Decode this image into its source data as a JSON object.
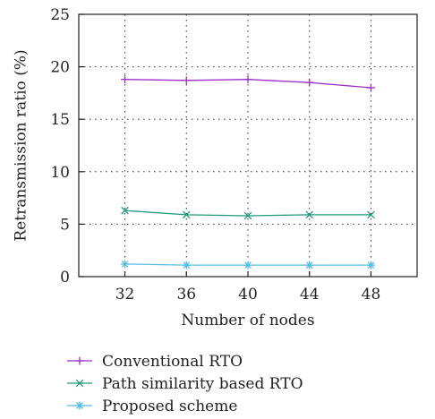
{
  "chart_data": {
    "type": "line",
    "xlabel": "Number of nodes",
    "ylabel": "Retransmission ratio (%)",
    "x": [
      32,
      36,
      40,
      44,
      48
    ],
    "xlim": [
      29,
      51
    ],
    "ylim": [
      0,
      25
    ],
    "yticks": [
      0,
      5,
      10,
      15,
      20,
      25
    ],
    "grid": true,
    "legend_position": "bottom",
    "series": [
      {
        "name": "Conventional RTO",
        "values": [
          18.8,
          18.7,
          18.8,
          18.5,
          18.0
        ],
        "color": "#9b30c8",
        "marker": "plus"
      },
      {
        "name": "Path similarity based RTO",
        "values": [
          6.3,
          5.9,
          5.8,
          5.9,
          5.9
        ],
        "color": "#1f9a7a",
        "marker": "x"
      },
      {
        "name": "Proposed scheme",
        "values": [
          1.2,
          1.1,
          1.1,
          1.1,
          1.1
        ],
        "color": "#55bde0",
        "marker": "asterisk"
      }
    ]
  }
}
